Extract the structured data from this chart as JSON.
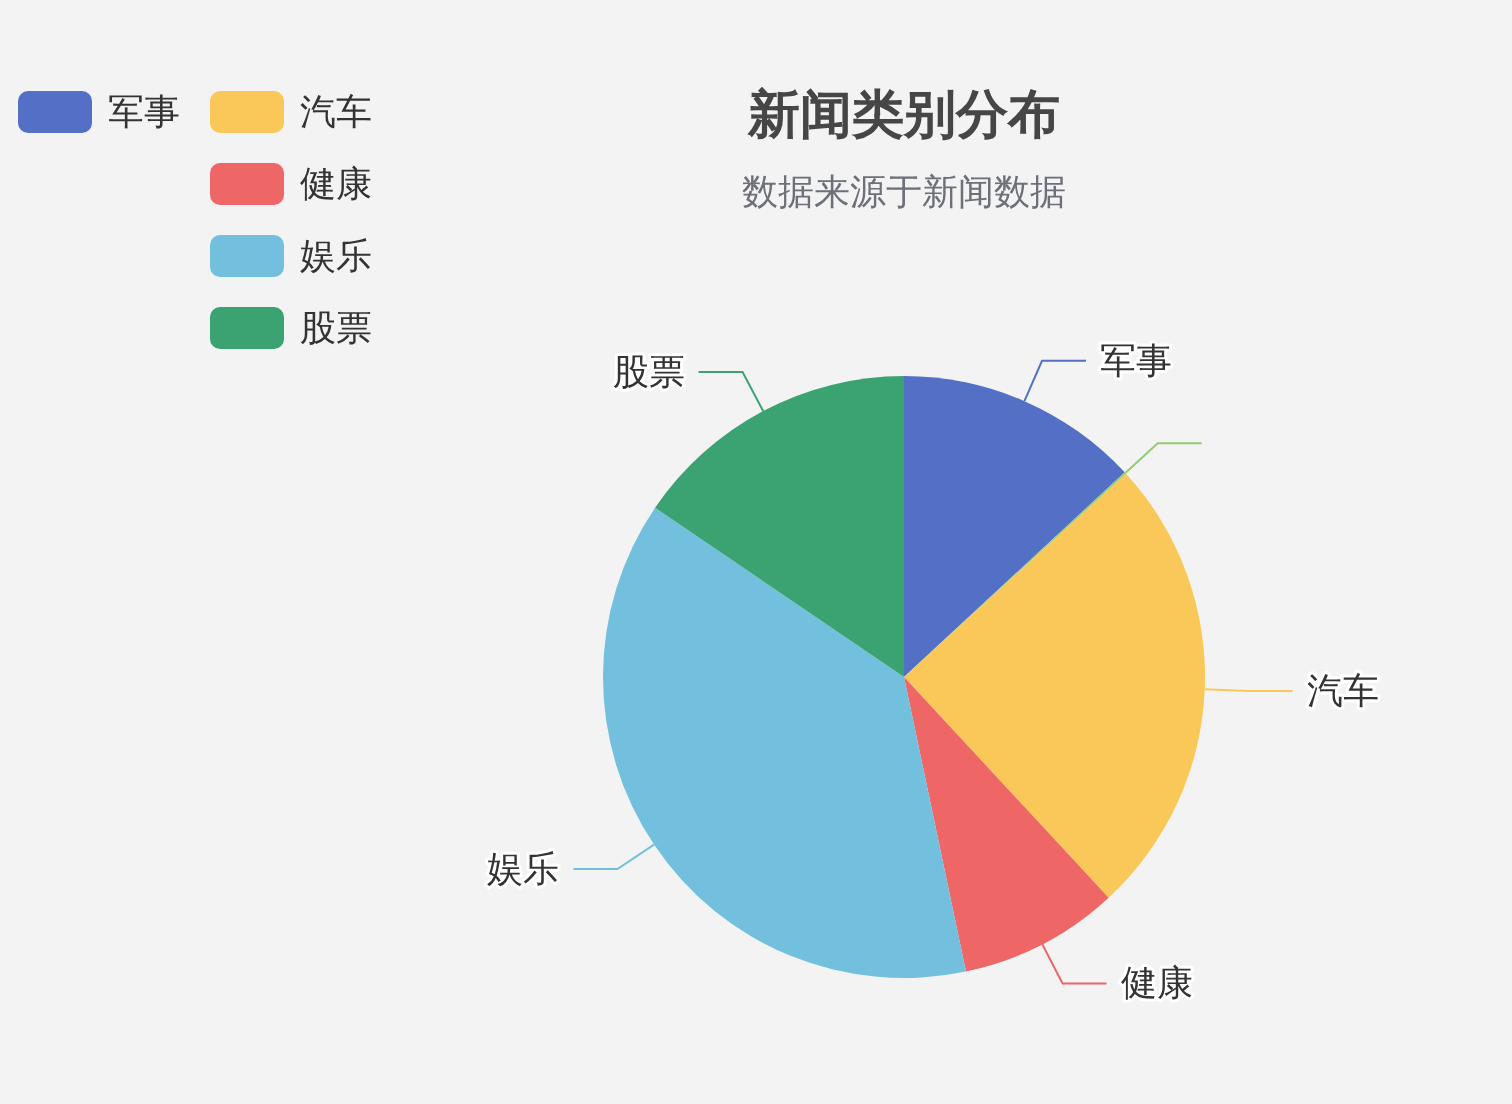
{
  "chart_data": {
    "type": "pie",
    "title": "新闻类别分布",
    "subtitle": "数据来源于新闻数据",
    "categories": [
      "军事",
      null,
      "汽车",
      "健康",
      "娱乐",
      "股票"
    ],
    "values": [
      13.1,
      0.1,
      24.9,
      8.6,
      37.8,
      15.5
    ],
    "colors": [
      "#5470c6",
      "#91cc75",
      "#fac858",
      "#ee6666",
      "#73c0de",
      "#3ba272"
    ],
    "legend": "top left"
  }
}
